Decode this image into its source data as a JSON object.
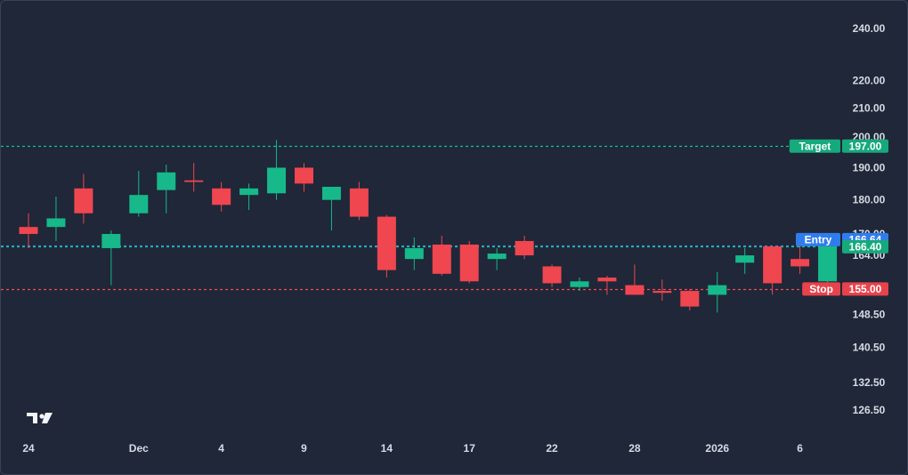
{
  "chart_data": {
    "type": "candlestick",
    "title": "",
    "xlabel": "",
    "ylabel": "",
    "y_scale": "log",
    "ylim": [
      120,
      250
    ],
    "grid": false,
    "y_ticks": [
      "240.00",
      "220.00",
      "210.00",
      "200.00",
      "190.00",
      "180.00",
      "170.00",
      "164.00",
      "148.50",
      "140.50",
      "132.50",
      "126.50"
    ],
    "x_ticks": [
      {
        "label": "24",
        "index": 0
      },
      {
        "label": "Dec",
        "index": 4
      },
      {
        "label": "4",
        "index": 7
      },
      {
        "label": "9",
        "index": 10
      },
      {
        "label": "14",
        "index": 13
      },
      {
        "label": "17",
        "index": 16
      },
      {
        "label": "22",
        "index": 19
      },
      {
        "label": "28",
        "index": 22
      },
      {
        "label": "2026",
        "index": 25
      },
      {
        "label": "6",
        "index": 28
      }
    ],
    "candles": [
      {
        "o": 172,
        "h": 176,
        "l": 166,
        "c": 170
      },
      {
        "o": 172,
        "h": 181,
        "l": 168,
        "c": 174.5
      },
      {
        "o": 183.5,
        "h": 188,
        "l": 173,
        "c": 176
      },
      {
        "o": 166,
        "h": 171,
        "l": 156,
        "c": 170
      },
      {
        "o": 176,
        "h": 189,
        "l": 175,
        "c": 181.5
      },
      {
        "o": 183,
        "h": 191,
        "l": 176,
        "c": 188.5
      },
      {
        "o": 186,
        "h": 191.5,
        "l": 182.5,
        "c": 185.5
      },
      {
        "o": 183.5,
        "h": 185.5,
        "l": 176.5,
        "c": 178.5
      },
      {
        "o": 181.5,
        "h": 185,
        "l": 177,
        "c": 183.5
      },
      {
        "o": 182,
        "h": 199,
        "l": 180,
        "c": 190
      },
      {
        "o": 190,
        "h": 191.5,
        "l": 182.5,
        "c": 185
      },
      {
        "o": 180,
        "h": 184,
        "l": 171,
        "c": 184
      },
      {
        "o": 183.5,
        "h": 185.5,
        "l": 174,
        "c": 175
      },
      {
        "o": 175,
        "h": 175.5,
        "l": 158,
        "c": 160
      },
      {
        "o": 163,
        "h": 169,
        "l": 160,
        "c": 166
      },
      {
        "o": 167,
        "h": 169.5,
        "l": 158.5,
        "c": 159
      },
      {
        "o": 167,
        "h": 168,
        "l": 156.5,
        "c": 157
      },
      {
        "o": 163,
        "h": 166,
        "l": 160,
        "c": 164.5
      },
      {
        "o": 168,
        "h": 169.5,
        "l": 163,
        "c": 164
      },
      {
        "o": 161,
        "h": 161.5,
        "l": 155.5,
        "c": 156.5
      },
      {
        "o": 155.5,
        "h": 158,
        "l": 154.5,
        "c": 157
      },
      {
        "o": 158,
        "h": 158.5,
        "l": 153.5,
        "c": 157
      },
      {
        "o": 156,
        "h": 161.5,
        "l": 153.5,
        "c": 153.5
      },
      {
        "o": 154.5,
        "h": 157.5,
        "l": 152,
        "c": 154
      },
      {
        "o": 154.5,
        "h": 155,
        "l": 149.5,
        "c": 150.5
      },
      {
        "o": 153.5,
        "h": 159.5,
        "l": 149,
        "c": 156
      },
      {
        "o": 162,
        "h": 166,
        "l": 159,
        "c": 164
      },
      {
        "o": 166.5,
        "h": 166.5,
        "l": 153.5,
        "c": 156.5
      },
      {
        "o": 163,
        "h": 168.5,
        "l": 159,
        "c": 161
      },
      {
        "o": 157,
        "h": 166.5,
        "l": 156.5,
        "c": 166.5
      }
    ],
    "levels": [
      {
        "label": "Target",
        "value": 197.0,
        "price_label": "197.00",
        "color": "#1fbf8f",
        "tag_color": "#16a97c"
      },
      {
        "label": "Entry",
        "value": 166.64,
        "price_label": "166.64",
        "color": "#3f86f0",
        "tag_color": "#2f7ded"
      },
      {
        "label": "",
        "value": 166.4,
        "price_label": "166.40",
        "color": "#1fbf8f",
        "tag_color": "#16a97c"
      },
      {
        "label": "Stop",
        "value": 155.0,
        "price_label": "155.00",
        "color": "#f24a55",
        "tag_color": "#e8424c"
      }
    ],
    "colors": {
      "up": "#17b88a",
      "down": "#ef4650",
      "background": "#1f2738",
      "axis_text": "#d6dbe4"
    }
  },
  "logo": "TV"
}
